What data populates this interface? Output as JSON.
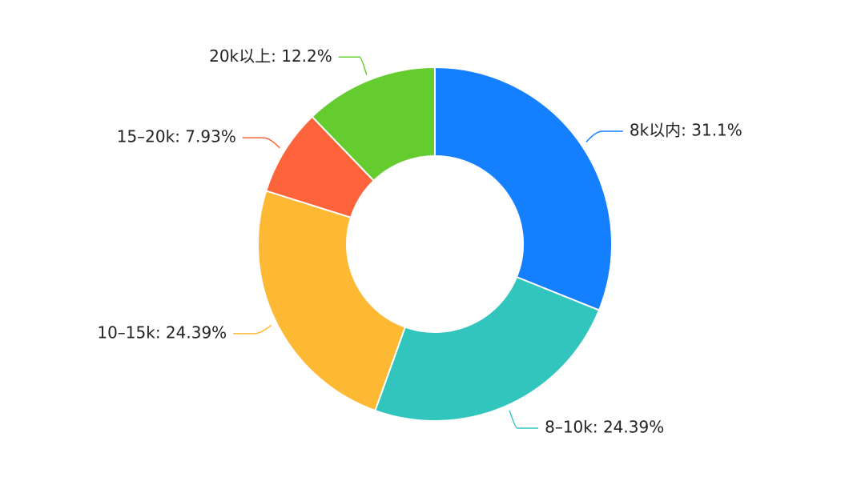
{
  "chart_data": {
    "type": "pie",
    "variant": "donut",
    "slices": [
      {
        "label": "8k以内",
        "value": 31.1,
        "display": "8k以内: 31.1%",
        "color": "#1480ff"
      },
      {
        "label": "8-10k",
        "value": 24.39,
        "display": "8–10k: 24.39%",
        "color": "#31c5be"
      },
      {
        "label": "10-15k",
        "value": 24.39,
        "display": "10–15k: 24.39%",
        "color": "#fdb933"
      },
      {
        "label": "15-20k",
        "value": 7.93,
        "display": "15–20k: 7.93%",
        "color": "#fe643b"
      },
      {
        "label": "20k以上",
        "value": 12.2,
        "display": "20k以上: 12.2%",
        "color": "#65cc30"
      }
    ],
    "start": "top",
    "direction": "clockwise",
    "legend": "none"
  }
}
